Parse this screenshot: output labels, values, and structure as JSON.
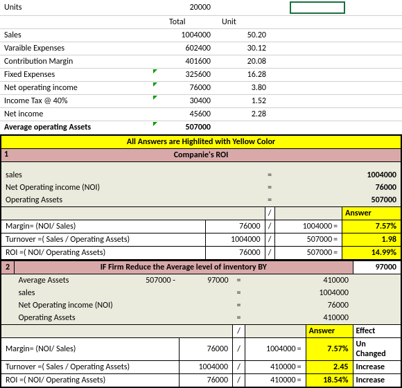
{
  "top": {
    "units_label": "Units",
    "units_value": "20000",
    "total_hdr": "Total",
    "unit_hdr": "Unit",
    "rows": [
      {
        "label": "Sales",
        "total": "1004000",
        "unit": "50.20",
        "tri": false,
        "bold": false
      },
      {
        "label": "Varaible Expenses",
        "total": "602400",
        "unit": "30.12",
        "tri": false,
        "bold": false
      },
      {
        "label": "Contribution Margin",
        "total": "401600",
        "unit": "20.08",
        "tri": false,
        "bold": false
      },
      {
        "label": "Fixed Expenses",
        "total": "325600",
        "unit": "16.28",
        "tri": true,
        "bold": false
      },
      {
        "label": "Net operating income",
        "total": "76000",
        "unit": "3.80",
        "tri": true,
        "bold": false
      },
      {
        "label": "Income Tax @ 40%",
        "total": "30400",
        "unit": "1.52",
        "tri": true,
        "bold": false
      },
      {
        "label": "Net income",
        "total": "45600",
        "unit": "2.28",
        "tri": false,
        "bold": false
      },
      {
        "label": "Average operating Assets",
        "total": "507000",
        "unit": "",
        "tri": true,
        "bold": true
      }
    ]
  },
  "banner": "All Answers are Highlited with Yellow Color",
  "sec1": {
    "num": "1",
    "title": "Companie's ROI",
    "lines": [
      {
        "label": "sales",
        "val": "1004000"
      },
      {
        "label": "Net Operating income (NOI)",
        "val": "76000"
      },
      {
        "label": "Operating Assets",
        "val": "507000"
      }
    ],
    "answer_hdr": "Answer",
    "formulas": [
      {
        "label": "Margin= (NOI/ Sales)",
        "a": "76000",
        "b": "1004000",
        "ans": "7.57%"
      },
      {
        "label": "Turnover =( Sales / Operating Assets)",
        "a": "1004000",
        "b": "507000",
        "ans": "1.98"
      },
      {
        "label": "ROI =( NOI/ Operating Assets)",
        "a": "76000",
        "b": "507000",
        "ans": "14.99%"
      }
    ]
  },
  "sec2": {
    "num": "2",
    "title": "IF Firm Reduce the Average level of inventory BY",
    "title_val": "97000",
    "avg_label": "Average Assets",
    "avg_a": "507000",
    "avg_minus": "-",
    "avg_b": "97000",
    "avg_eq": "=",
    "avg_res": "410000",
    "lines": [
      {
        "label": "sales",
        "val": "1004000"
      },
      {
        "label": "Net Operating income (NOI)",
        "val": "76000"
      },
      {
        "label": "Operating Assets",
        "val": "410000"
      }
    ],
    "answer_hdr": "Answer",
    "effect_hdr": "Effect",
    "formulas": [
      {
        "label": "Margin= (NOI/ Sales)",
        "a": "76000",
        "b": "1004000",
        "ans": "7.57%",
        "eff": "Un Changed"
      },
      {
        "label": "Turnover =( Sales / Operating Assets)",
        "a": "1004000",
        "b": "410000",
        "ans": "2.45",
        "eff": "Increase"
      },
      {
        "label": "ROI =( NOI/ Operating Assets)",
        "a": "76000",
        "b": "410000",
        "ans": "18.54%",
        "eff": "Increase"
      }
    ]
  },
  "sym": {
    "slash": "/",
    "eq": "="
  }
}
